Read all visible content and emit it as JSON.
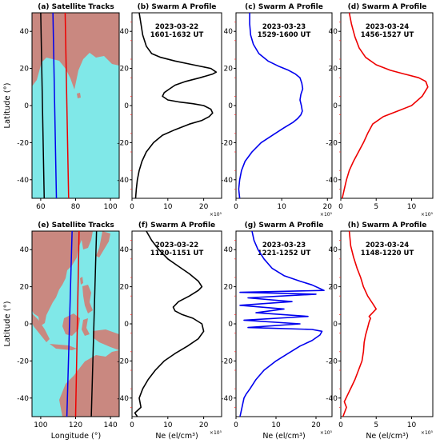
{
  "figure": {
    "row_ylabel": "Latitude (°)",
    "top_panels": [
      {
        "title": "(a) Satellite Tracks",
        "type": "map"
      },
      {
        "title": "(b) Swarm A Profile",
        "date": "2023-03-22",
        "time": "1601-1632 UT",
        "color": "#000000"
      },
      {
        "title": "(c) Swarm A Profile",
        "date": "2023-03-23",
        "time": "1529-1600 UT",
        "color": "#0000ee"
      },
      {
        "title": "(d) Swarm A Profile",
        "date": "2023-03-24",
        "time": "1456-1527 UT",
        "color": "#ee0000"
      }
    ],
    "bottom_panels": [
      {
        "title": "(e) Satellite Tracks",
        "type": "map",
        "xlabel": "Longitude (°)"
      },
      {
        "title": "(f) Swarm A Profile",
        "date": "2023-03-22",
        "time": "1120-1151 UT",
        "color": "#000000",
        "xlabel": "Ne (el/cm³)"
      },
      {
        "title": "(g) Swarm A Profile",
        "date": "2023-03-23",
        "time": "1221-1252 UT",
        "color": "#0000ee",
        "xlabel": "Ne (el/cm³)"
      },
      {
        "title": "(h) Swarm A Profile",
        "date": "2023-03-24",
        "time": "1148-1220 UT",
        "color": "#ee0000",
        "xlabel": "Ne (el/cm³)"
      }
    ],
    "multiplier": "×10⁵",
    "colors": {
      "ocean": "#80e8e8",
      "land": "#c98880",
      "minor_tick": "#ee3333"
    }
  },
  "chart_data": [
    {
      "type": "map",
      "panel": "a",
      "xlim": [
        55,
        105
      ],
      "ylim": [
        -50,
        50
      ],
      "xticks": [
        60,
        80,
        100
      ],
      "yticks": [
        -40,
        -20,
        0,
        20,
        40
      ],
      "tracks": [
        {
          "color": "#000000",
          "lon": [
            60,
            62
          ]
        },
        {
          "color": "#0000ee",
          "lon": [
            67,
            69
          ]
        },
        {
          "color": "#ee0000",
          "lon": [
            74,
            76
          ]
        }
      ]
    },
    {
      "type": "line",
      "panel": "b",
      "xlim": [
        0,
        25
      ],
      "ylim": [
        -50,
        50
      ],
      "xticks": [
        0,
        10,
        20
      ],
      "yticks": [
        -40,
        -20,
        0,
        20,
        40
      ],
      "x": [
        1.0,
        1.2,
        1.5,
        2.0,
        2.8,
        4.0,
        6.0,
        8.5,
        12.0,
        16.0,
        19.5,
        21.5,
        22.5,
        22.0,
        20.0,
        17.0,
        13.0,
        10.0,
        8.5,
        9.0,
        10.5,
        12.0,
        15.0,
        19.0,
        22.5,
        23.5,
        22.0,
        17.0,
        12.0,
        8.0,
        5.5,
        4.0,
        3.0,
        2.5,
        2.0
      ],
      "y": [
        -50,
        -45,
        -40,
        -35,
        -30,
        -25,
        -20,
        -16,
        -13,
        -10,
        -8,
        -6,
        -4,
        -2,
        0,
        1,
        2,
        3,
        5,
        7,
        9,
        11,
        13,
        15,
        17,
        18,
        20,
        22,
        24,
        26,
        28,
        32,
        38,
        44,
        50
      ]
    },
    {
      "type": "line",
      "panel": "c",
      "xlim": [
        0,
        21
      ],
      "ylim": [
        -50,
        50
      ],
      "xticks": [
        0,
        10,
        20
      ],
      "yticks": [
        -40,
        -20,
        0,
        20,
        40
      ],
      "x": [
        0.8,
        0.6,
        0.8,
        1.2,
        2.0,
        3.5,
        5.5,
        8.0,
        10.5,
        12.5,
        13.5,
        14.2,
        14.5,
        14.3,
        14.0,
        14.2,
        14.6,
        14.4,
        14.0,
        13.0,
        11.5,
        9.5,
        7.0,
        5.0,
        3.8,
        3.2,
        3.0,
        3.0
      ],
      "y": [
        -50,
        -45,
        -40,
        -35,
        -30,
        -25,
        -20,
        -16,
        -12,
        -9,
        -7,
        -5,
        -3,
        0,
        3,
        6,
        9,
        12,
        15,
        17,
        19,
        21,
        24,
        28,
        33,
        38,
        44,
        50
      ]
    },
    {
      "type": "line",
      "panel": "d",
      "xlim": [
        0,
        13
      ],
      "ylim": [
        -50,
        50
      ],
      "xticks": [
        0,
        5,
        10
      ],
      "yticks": [
        -40,
        -20,
        0,
        20,
        40
      ],
      "x": [
        0.2,
        0.5,
        0.8,
        1.2,
        1.8,
        2.5,
        3.2,
        3.8,
        4.5,
        6.0,
        8.0,
        10.0,
        11.5,
        12.3,
        12.0,
        11.0,
        9.0,
        7.0,
        5.0,
        3.5,
        2.6,
        2.0,
        1.5,
        1.2
      ],
      "y": [
        -50,
        -45,
        -40,
        -35,
        -30,
        -25,
        -20,
        -15,
        -10,
        -6,
        -3,
        0,
        5,
        10,
        13,
        15,
        17,
        19,
        22,
        26,
        31,
        37,
        44,
        50
      ]
    },
    {
      "type": "map",
      "panel": "e",
      "xlim": [
        95,
        145
      ],
      "ylim": [
        -50,
        50
      ],
      "xticks": [
        100,
        120,
        140
      ],
      "yticks": [
        -40,
        -20,
        0,
        20,
        40
      ],
      "tracks": [
        {
          "color": "#0000ee",
          "lon": [
            118,
            115
          ]
        },
        {
          "color": "#ee0000",
          "lon": [
            122,
            120
          ]
        },
        {
          "color": "#000000",
          "lon": [
            132,
            129
          ]
        }
      ]
    },
    {
      "type": "line",
      "panel": "f",
      "xlim": [
        0,
        25
      ],
      "ylim": [
        -50,
        50
      ],
      "xticks": [
        0,
        10,
        20
      ],
      "yticks": [
        -40,
        -20,
        0,
        20,
        40
      ],
      "x": [
        1.5,
        0.8,
        2.5,
        2.0,
        3.0,
        4.5,
        6.5,
        9.0,
        12.0,
        15.5,
        18.5,
        20.0,
        19.5,
        17.0,
        14.0,
        12.0,
        11.5,
        13.0,
        16.0,
        18.5,
        19.5,
        18.5,
        16.0,
        13.0,
        10.0,
        7.5,
        5.5,
        4.0
      ],
      "y": [
        -50,
        -48,
        -45,
        -40,
        -35,
        -30,
        -25,
        -20,
        -16,
        -12,
        -8,
        -4,
        0,
        3,
        5,
        7,
        9,
        12,
        15,
        18,
        20,
        23,
        27,
        31,
        35,
        40,
        45,
        50
      ]
    },
    {
      "type": "line",
      "panel": "g",
      "xlim": [
        0,
        24
      ],
      "ylim": [
        -50,
        50
      ],
      "xticks": [
        0,
        10,
        20
      ],
      "yticks": [
        -40,
        -20,
        0,
        20,
        40
      ],
      "x": [
        1.0,
        1.5,
        2.0,
        2.5,
        3.5,
        5.0,
        7.0,
        10.0,
        13.0,
        16.0,
        19.0,
        21.0,
        21.5,
        19.0,
        3.0,
        16.0,
        2.0,
        18.0,
        5.0,
        12.0,
        1.0,
        14.0,
        3.0,
        20.0,
        1.0,
        22.0,
        21.0,
        19.0,
        16.0,
        12.0,
        9.0,
        7.0,
        5.5,
        4.5,
        4.0
      ],
      "y": [
        -50,
        -45,
        -40,
        -38,
        -35,
        -30,
        -25,
        -20,
        -16,
        -12,
        -9,
        -6,
        -4,
        -3,
        -2,
        0,
        2,
        4,
        6,
        8,
        10,
        12,
        14,
        16,
        17,
        18,
        19,
        21,
        23,
        26,
        30,
        35,
        40,
        45,
        50
      ]
    },
    {
      "type": "line",
      "panel": "h",
      "xlim": [
        0,
        13
      ],
      "ylim": [
        -50,
        50
      ],
      "xticks": [
        0,
        5,
        10
      ],
      "yticks": [
        -40,
        -20,
        0,
        20,
        40
      ],
      "x": [
        0.3,
        0.8,
        0.5,
        1.0,
        1.5,
        2.0,
        2.5,
        3.0,
        3.2,
        3.3,
        3.5,
        3.8,
        4.0,
        4.2,
        4.0,
        4.5,
        5.0,
        4.5,
        3.8,
        3.2,
        2.8,
        2.3,
        1.8,
        1.4,
        1.2
      ],
      "y": [
        -50,
        -45,
        -42,
        -38,
        -34,
        -30,
        -25,
        -20,
        -15,
        -10,
        -6,
        -2,
        1,
        3,
        4,
        6,
        8,
        11,
        15,
        20,
        25,
        30,
        36,
        42,
        50
      ]
    }
  ]
}
